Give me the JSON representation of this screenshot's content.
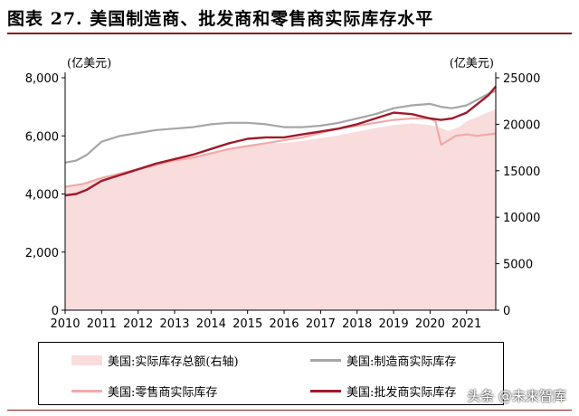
{
  "title": "图表 27. 美国制造商、批发商和零售商实际库存水平",
  "watermark": "头条 @未来智库",
  "chart_data": {
    "type": "line",
    "left_axis": {
      "unit": "(亿美元)",
      "min": 0,
      "max": 8000,
      "ticks": [
        0,
        2000,
        4000,
        6000,
        8000
      ],
      "tick_labels": [
        "0",
        "2,000",
        "4,000",
        "6,000",
        "8,000"
      ]
    },
    "right_axis": {
      "unit": "(亿美元)",
      "min": 0,
      "max": 25000,
      "ticks": [
        0,
        5000,
        10000,
        15000,
        20000,
        25000
      ],
      "tick_labels": [
        "0",
        "5000",
        "10000",
        "15000",
        "20000",
        "25000"
      ]
    },
    "x_axis": {
      "min": 2010,
      "max": 2021.8,
      "ticks": [
        2010,
        2011,
        2012,
        2013,
        2014,
        2015,
        2016,
        2017,
        2018,
        2019,
        2020,
        2021
      ],
      "tick_labels": [
        "2010",
        "2011",
        "2012",
        "2013",
        "2014",
        "2015",
        "2016",
        "2017",
        "2018",
        "2019",
        "2020",
        "2021"
      ]
    },
    "grid": false,
    "legend_position": "bottom",
    "series": [
      {
        "name": "美国:实际库存总额(右轴)",
        "axis": "right",
        "style": "area",
        "color": "#f9dcdc",
        "points": [
          [
            2010,
            13300
          ],
          [
            2010.5,
            13700
          ],
          [
            2011,
            14300
          ],
          [
            2011.5,
            14800
          ],
          [
            2012,
            15300
          ],
          [
            2012.5,
            15700
          ],
          [
            2013,
            16100
          ],
          [
            2013.5,
            16500
          ],
          [
            2014,
            17000
          ],
          [
            2014.5,
            17400
          ],
          [
            2015,
            17700
          ],
          [
            2015.5,
            17900
          ],
          [
            2016,
            18000
          ],
          [
            2016.5,
            18200
          ],
          [
            2017,
            18500
          ],
          [
            2017.5,
            18800
          ],
          [
            2018,
            19200
          ],
          [
            2018.5,
            19600
          ],
          [
            2019,
            19900
          ],
          [
            2019.5,
            20100
          ],
          [
            2020,
            19900
          ],
          [
            2020.3,
            19600
          ],
          [
            2020.5,
            19300
          ],
          [
            2020.8,
            19700
          ],
          [
            2021,
            20300
          ],
          [
            2021.3,
            20800
          ],
          [
            2021.6,
            21300
          ],
          [
            2021.8,
            21600
          ]
        ]
      },
      {
        "name": "美国:制造商实际库存",
        "axis": "left",
        "style": "line",
        "color": "#a6a6a6",
        "points": [
          [
            2010,
            5080
          ],
          [
            2010.3,
            5150
          ],
          [
            2010.6,
            5350
          ],
          [
            2011,
            5800
          ],
          [
            2011.5,
            6000
          ],
          [
            2012,
            6100
          ],
          [
            2012.5,
            6200
          ],
          [
            2013,
            6250
          ],
          [
            2013.5,
            6300
          ],
          [
            2014,
            6400
          ],
          [
            2014.5,
            6450
          ],
          [
            2015,
            6450
          ],
          [
            2015.5,
            6400
          ],
          [
            2016,
            6300
          ],
          [
            2016.5,
            6300
          ],
          [
            2017,
            6350
          ],
          [
            2017.5,
            6450
          ],
          [
            2018,
            6600
          ],
          [
            2018.5,
            6750
          ],
          [
            2019,
            6950
          ],
          [
            2019.5,
            7050
          ],
          [
            2020,
            7100
          ],
          [
            2020.3,
            7000
          ],
          [
            2020.6,
            6950
          ],
          [
            2021,
            7050
          ],
          [
            2021.3,
            7250
          ],
          [
            2021.6,
            7450
          ],
          [
            2021.8,
            7550
          ]
        ]
      },
      {
        "name": "美国:零售商实际库存",
        "axis": "left",
        "style": "line",
        "color": "#f2a9a9",
        "points": [
          [
            2010,
            4250
          ],
          [
            2010.5,
            4350
          ],
          [
            2011,
            4550
          ],
          [
            2011.5,
            4700
          ],
          [
            2012,
            4850
          ],
          [
            2012.5,
            5000
          ],
          [
            2013,
            5150
          ],
          [
            2013.5,
            5250
          ],
          [
            2014,
            5400
          ],
          [
            2014.5,
            5550
          ],
          [
            2015,
            5650
          ],
          [
            2015.5,
            5750
          ],
          [
            2016,
            5850
          ],
          [
            2016.5,
            5950
          ],
          [
            2017,
            6100
          ],
          [
            2017.5,
            6250
          ],
          [
            2018,
            6350
          ],
          [
            2018.5,
            6450
          ],
          [
            2019,
            6550
          ],
          [
            2019.5,
            6600
          ],
          [
            2020,
            6600
          ],
          [
            2020.15,
            6500
          ],
          [
            2020.3,
            5700
          ],
          [
            2020.45,
            5800
          ],
          [
            2020.7,
            6000
          ],
          [
            2021,
            6050
          ],
          [
            2021.3,
            6000
          ],
          [
            2021.6,
            6050
          ],
          [
            2021.8,
            6080
          ]
        ]
      },
      {
        "name": "美国:批发商实际库存",
        "axis": "left",
        "style": "line",
        "color": "#9e1b2a",
        "points": [
          [
            2010,
            3950
          ],
          [
            2010.3,
            4000
          ],
          [
            2010.6,
            4150
          ],
          [
            2011,
            4450
          ],
          [
            2011.5,
            4650
          ],
          [
            2012,
            4850
          ],
          [
            2012.5,
            5050
          ],
          [
            2013,
            5200
          ],
          [
            2013.5,
            5350
          ],
          [
            2014,
            5550
          ],
          [
            2014.5,
            5750
          ],
          [
            2015,
            5900
          ],
          [
            2015.5,
            5950
          ],
          [
            2016,
            5950
          ],
          [
            2016.5,
            6050
          ],
          [
            2017,
            6150
          ],
          [
            2017.5,
            6250
          ],
          [
            2018,
            6400
          ],
          [
            2018.5,
            6600
          ],
          [
            2019,
            6800
          ],
          [
            2019.5,
            6750
          ],
          [
            2020,
            6600
          ],
          [
            2020.3,
            6550
          ],
          [
            2020.6,
            6600
          ],
          [
            2021,
            6800
          ],
          [
            2021.3,
            7100
          ],
          [
            2021.6,
            7400
          ],
          [
            2021.8,
            7700
          ]
        ]
      }
    ]
  }
}
